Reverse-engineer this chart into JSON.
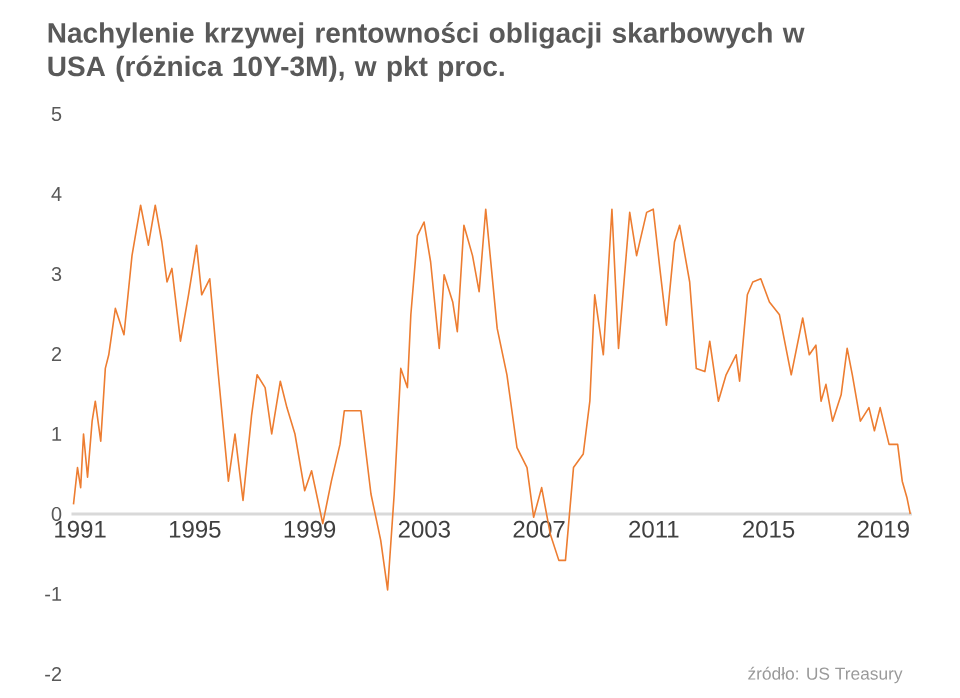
{
  "chart_data": {
    "type": "line",
    "title": "**Nachylenie krzywej rentowności obligacji skarbowych w USA (różnica 10Y-3M), w pkt proc.**",
    "annotations": [
      "źródło: US Treasury"
    ],
    "x": [
      1990.77,
      1990.91,
      1991.02,
      1991.12,
      1991.26,
      1991.42,
      1991.53,
      1991.72,
      1991.88,
      1992.0,
      1992.23,
      1992.53,
      1992.81,
      1993.11,
      1993.38,
      1993.62,
      1993.85,
      1994.03,
      1994.2,
      1994.5,
      1994.78,
      1995.06,
      1995.24,
      1995.52,
      1995.82,
      1996.17,
      1996.4,
      1996.68,
      1996.98,
      1997.17,
      1997.45,
      1997.68,
      1997.98,
      1998.21,
      1998.49,
      1998.83,
      1999.07,
      1999.46,
      1999.76,
      2000.06,
      2000.21,
      2000.79,
      2001.14,
      2001.48,
      2001.72,
      2001.95,
      2002.18,
      2002.41,
      2002.53,
      2002.76,
      2002.99,
      2003.22,
      2003.52,
      2003.69,
      2003.99,
      2004.15,
      2004.38,
      2004.68,
      2004.91,
      2005.14,
      2005.54,
      2005.88,
      2006.23,
      2006.58,
      2006.81,
      2007.09,
      2007.39,
      2007.69,
      2007.92,
      2008.2,
      2008.54,
      2008.77,
      2008.94,
      2009.24,
      2009.54,
      2009.77,
      2010.16,
      2010.4,
      2010.75,
      2010.98,
      2011.21,
      2011.44,
      2011.72,
      2011.9,
      2012.25,
      2012.48,
      2012.78,
      2012.95,
      2013.25,
      2013.52,
      2013.87,
      2013.99,
      2014.26,
      2014.45,
      2014.73,
      2015.03,
      2015.38,
      2015.79,
      2016.19,
      2016.42,
      2016.65,
      2016.83,
      2017.0,
      2017.23,
      2017.53,
      2017.74,
      2017.92,
      2018.2,
      2018.5,
      2018.69,
      2018.89,
      2019.2,
      2019.5,
      2019.66,
      2019.82,
      2019.94
    ],
    "values": [
      0.12,
      0.58,
      0.33,
      1.0,
      0.46,
      1.16,
      1.41,
      0.91,
      1.82,
      1.99,
      2.57,
      2.24,
      3.23,
      3.86,
      3.36,
      3.86,
      3.4,
      2.9,
      3.07,
      2.16,
      2.74,
      3.36,
      2.74,
      2.94,
      1.74,
      0.41,
      1.0,
      0.17,
      1.24,
      1.74,
      1.58,
      1.0,
      1.66,
      1.33,
      1.0,
      0.29,
      0.54,
      -0.12,
      0.41,
      0.87,
      1.29,
      1.29,
      0.25,
      -0.33,
      -0.95,
      0.25,
      1.82,
      1.58,
      2.49,
      3.48,
      3.65,
      3.15,
      2.07,
      2.99,
      2.65,
      2.28,
      3.61,
      3.23,
      2.78,
      3.81,
      2.32,
      1.74,
      0.83,
      0.58,
      -0.04,
      0.33,
      -0.25,
      -0.58,
      -0.58,
      0.58,
      0.75,
      1.41,
      2.74,
      1.99,
      3.81,
      2.07,
      3.77,
      3.23,
      3.77,
      3.81,
      3.07,
      2.36,
      3.4,
      3.61,
      2.9,
      1.82,
      1.78,
      2.16,
      1.41,
      1.74,
      1.99,
      1.66,
      2.74,
      2.9,
      2.94,
      2.65,
      2.49,
      1.74,
      2.45,
      1.99,
      2.11,
      1.41,
      1.62,
      1.16,
      1.49,
      2.07,
      1.74,
      1.16,
      1.33,
      1.04,
      1.33,
      0.87,
      0.87,
      0.41,
      0.21,
      0.0
    ],
    "color": "#ed7d31",
    "line_style": "solid",
    "xlim": [
      1990.7,
      2020.0
    ],
    "xticks": [
      1991,
      1995,
      1999,
      2003,
      2007,
      2011,
      2015,
      2019
    ],
    "ylim": [
      -2,
      5
    ],
    "yticks": [
      -2,
      -1,
      0,
      1,
      2,
      3,
      4,
      5
    ]
  }
}
